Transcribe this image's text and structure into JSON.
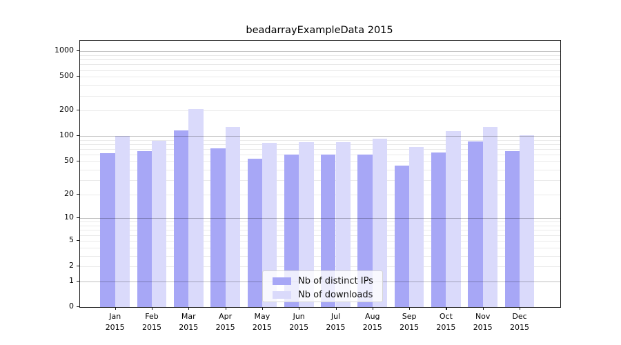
{
  "figure": {
    "title": "beadarrayExampleData 2015"
  },
  "chart_data": {
    "type": "bar",
    "title": "beadarrayExampleData 2015",
    "categories": [
      "Jan",
      "Feb",
      "Mar",
      "Apr",
      "May",
      "Jun",
      "Jul",
      "Aug",
      "Sep",
      "Oct",
      "Nov",
      "Dec"
    ],
    "category_year": "2015",
    "series": [
      {
        "name": "Nb of distinct IPs",
        "color": "#a7a7f6",
        "values": [
          63,
          66,
          117,
          72,
          54,
          61,
          60,
          61,
          45,
          64,
          86,
          67
        ]
      },
      {
        "name": "Nb of downloads",
        "color": "#dadafb",
        "values": [
          100,
          88,
          209,
          128,
          84,
          85,
          85,
          93,
          75,
          114,
          129,
          102
        ]
      }
    ],
    "xlabel": "",
    "ylabel": "",
    "y_scale": "log1p",
    "y_ticks": [
      0,
      1,
      2,
      5,
      10,
      20,
      50,
      100,
      200,
      500,
      1000
    ],
    "y_major_gridlines": [
      1,
      10,
      100,
      1000
    ],
    "ylim": [
      0,
      1325
    ],
    "grid": true,
    "legend_position": "lower center"
  }
}
